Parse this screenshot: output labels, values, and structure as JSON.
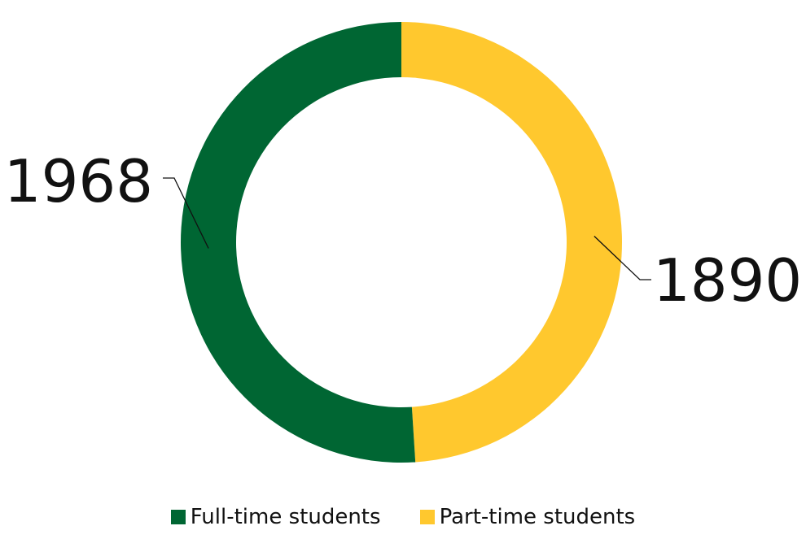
{
  "chart_data": {
    "type": "pie",
    "subtype": "donut",
    "categories": [
      "Full-time students",
      "Part-time students"
    ],
    "values": [
      1968,
      1890
    ],
    "colors": [
      "#006633",
      "#FFC82E"
    ],
    "data_labels": [
      "1968",
      "1890"
    ],
    "legend": {
      "position": "bottom",
      "entries": [
        "Full-time students",
        "Part-time students"
      ]
    },
    "title": ""
  }
}
